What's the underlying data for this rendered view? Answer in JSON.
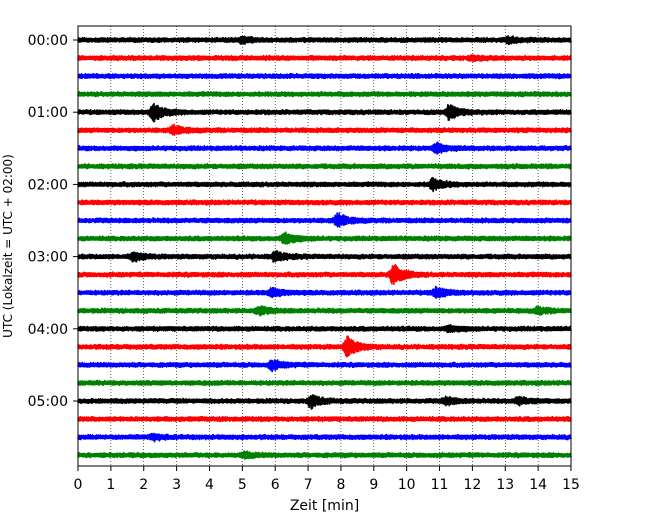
{
  "chart_data": {
    "type": "line",
    "title": "",
    "xlabel": "Zeit  [min]",
    "ylabel": "UTC (Lokalzeit = UTC + 02:00)",
    "xlim": [
      0,
      15
    ],
    "x_ticks": [
      "0",
      "1",
      "2",
      "3",
      "4",
      "5",
      "6",
      "7",
      "8",
      "9",
      "10",
      "11",
      "12",
      "13",
      "14",
      "15"
    ],
    "y_ticks": [
      "00:00",
      "01:00",
      "02:00",
      "03:00",
      "04:00",
      "05:00"
    ],
    "grid": "vertical-dotted",
    "minutes_per_trace": 15,
    "color_cycle": [
      "#000000",
      "#ff0000",
      "#0000ff",
      "#008000"
    ],
    "traces": [
      {
        "start": "00:00",
        "color": "#000000",
        "events": [
          {
            "t": 5.0,
            "amp": 0.35
          },
          {
            "t": 13.1,
            "amp": 0.35
          }
        ]
      },
      {
        "start": "00:15",
        "color": "#ff0000",
        "events": [
          {
            "t": 12.0,
            "amp": 0.25
          }
        ]
      },
      {
        "start": "00:30",
        "color": "#0000ff",
        "events": []
      },
      {
        "start": "00:45",
        "color": "#008000",
        "events": []
      },
      {
        "start": "01:00",
        "color": "#000000",
        "events": [
          {
            "t": 2.3,
            "amp": 1.1
          },
          {
            "t": 11.3,
            "amp": 0.9
          }
        ]
      },
      {
        "start": "01:15",
        "color": "#ff0000",
        "events": [
          {
            "t": 2.9,
            "amp": 0.55
          }
        ]
      },
      {
        "start": "01:30",
        "color": "#0000ff",
        "events": [
          {
            "t": 10.9,
            "amp": 0.65
          }
        ]
      },
      {
        "start": "01:45",
        "color": "#008000",
        "events": []
      },
      {
        "start": "02:00",
        "color": "#000000",
        "events": [
          {
            "t": 10.8,
            "amp": 0.75
          }
        ]
      },
      {
        "start": "02:15",
        "color": "#ff0000",
        "events": []
      },
      {
        "start": "02:30",
        "color": "#0000ff",
        "events": [
          {
            "t": 7.9,
            "amp": 0.85
          }
        ]
      },
      {
        "start": "02:45",
        "color": "#008000",
        "events": [
          {
            "t": 6.3,
            "amp": 0.7
          }
        ]
      },
      {
        "start": "03:00",
        "color": "#000000",
        "events": [
          {
            "t": 1.7,
            "amp": 0.5
          },
          {
            "t": 6.0,
            "amp": 0.6
          }
        ]
      },
      {
        "start": "03:15",
        "color": "#ff0000",
        "events": [
          {
            "t": 9.6,
            "amp": 1.3
          }
        ]
      },
      {
        "start": "03:30",
        "color": "#0000ff",
        "events": [
          {
            "t": 5.9,
            "amp": 0.5
          },
          {
            "t": 10.9,
            "amp": 0.6
          }
        ]
      },
      {
        "start": "03:45",
        "color": "#008000",
        "events": [
          {
            "t": 5.5,
            "amp": 0.5
          },
          {
            "t": 14.0,
            "amp": 0.4
          }
        ]
      },
      {
        "start": "04:00",
        "color": "#000000",
        "events": [
          {
            "t": 11.3,
            "amp": 0.35
          }
        ]
      },
      {
        "start": "04:15",
        "color": "#ff0000",
        "events": [
          {
            "t": 8.2,
            "amp": 1.2
          }
        ]
      },
      {
        "start": "04:30",
        "color": "#0000ff",
        "events": [
          {
            "t": 5.9,
            "amp": 0.6
          }
        ]
      },
      {
        "start": "04:45",
        "color": "#008000",
        "events": []
      },
      {
        "start": "05:00",
        "color": "#000000",
        "events": [
          {
            "t": 7.1,
            "amp": 0.75
          },
          {
            "t": 11.2,
            "amp": 0.45
          },
          {
            "t": 13.4,
            "amp": 0.45
          }
        ]
      },
      {
        "start": "05:15",
        "color": "#ff0000",
        "events": []
      },
      {
        "start": "05:30",
        "color": "#0000ff",
        "events": [
          {
            "t": 2.3,
            "amp": 0.35
          }
        ]
      },
      {
        "start": "05:45",
        "color": "#008000",
        "events": [
          {
            "t": 5.1,
            "amp": 0.3
          }
        ]
      }
    ]
  }
}
